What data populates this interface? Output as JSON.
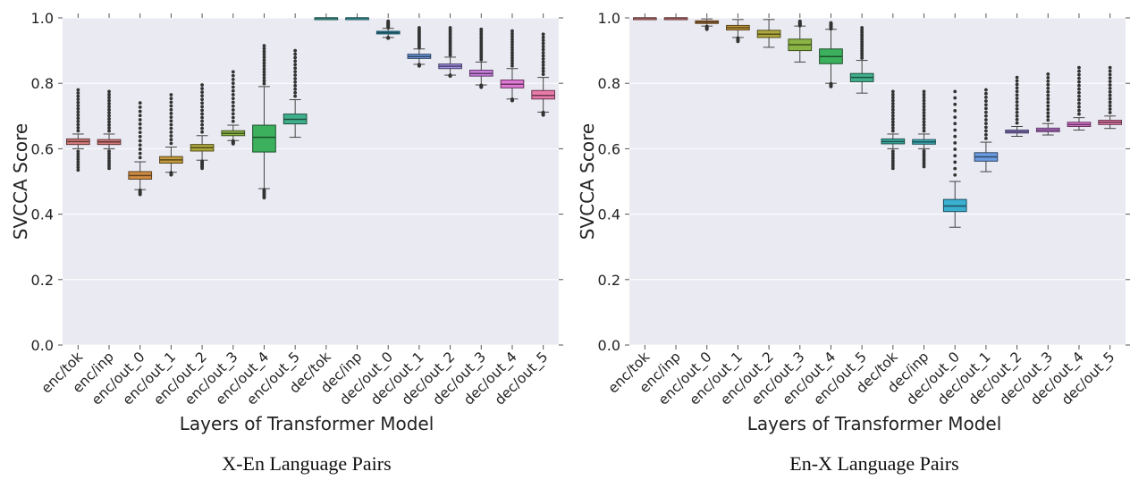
{
  "chart_data": [
    {
      "type": "box",
      "caption": "X-En Language Pairs",
      "xlabel": "Layers of Transformer Model",
      "ylabel": "SVCCA Score",
      "ylim": [
        0.0,
        1.0
      ],
      "yticks": [
        0.0,
        0.2,
        0.4,
        0.6,
        0.8,
        1.0
      ],
      "ytick_labels": [
        "0.0",
        "0.2",
        "0.4",
        "0.6",
        "0.8",
        "1.0"
      ],
      "grid": true,
      "categories": [
        "enc/tok",
        "enc/inp",
        "enc/out_0",
        "enc/out_1",
        "enc/out_2",
        "enc/out_3",
        "enc/out_4",
        "enc/out_5",
        "dec/tok",
        "dec/inp",
        "dec/out_0",
        "dec/out_1",
        "dec/out_2",
        "dec/out_3",
        "dec/out_4",
        "dec/out_5"
      ],
      "colors": [
        "#d77c7c",
        "#d6797a",
        "#d08c42",
        "#c49b3c",
        "#b0a83c",
        "#8ab545",
        "#3cb05c",
        "#40b08c",
        "#3fb0a5",
        "#3fb1b9",
        "#3aafd0",
        "#6b9be0",
        "#a08fe6",
        "#cc7fe0",
        "#e078d4",
        "#e87aaa"
      ],
      "boxes": [
        {
          "whisker_low": 0.6,
          "q1": 0.613,
          "median": 0.622,
          "q3": 0.63,
          "whisker_high": 0.645,
          "flier_low": 0.535,
          "flier_high": 0.78
        },
        {
          "whisker_low": 0.6,
          "q1": 0.613,
          "median": 0.621,
          "q3": 0.628,
          "whisker_high": 0.645,
          "flier_low": 0.54,
          "flier_high": 0.775
        },
        {
          "whisker_low": 0.475,
          "q1": 0.507,
          "median": 0.518,
          "q3": 0.53,
          "whisker_high": 0.56,
          "flier_low": 0.46,
          "flier_high": 0.74
        },
        {
          "whisker_low": 0.528,
          "q1": 0.556,
          "median": 0.566,
          "q3": 0.576,
          "whisker_high": 0.605,
          "flier_low": 0.52,
          "flier_high": 0.765
        },
        {
          "whisker_low": 0.565,
          "q1": 0.593,
          "median": 0.603,
          "q3": 0.613,
          "whisker_high": 0.64,
          "flier_low": 0.54,
          "flier_high": 0.795
        },
        {
          "whisker_low": 0.625,
          "q1": 0.64,
          "median": 0.647,
          "q3": 0.655,
          "whisker_high": 0.672,
          "flier_low": 0.615,
          "flier_high": 0.835
        },
        {
          "whisker_low": 0.478,
          "q1": 0.59,
          "median": 0.635,
          "q3": 0.672,
          "whisker_high": 0.79,
          "flier_low": 0.45,
          "flier_high": 0.915
        },
        {
          "whisker_low": 0.635,
          "q1": 0.676,
          "median": 0.69,
          "q3": 0.706,
          "whisker_high": 0.75,
          "flier_low": null,
          "flier_high": 0.9
        },
        {
          "whisker_low": 0.998,
          "q1": 0.999,
          "median": 1.0,
          "q3": 1.0,
          "whisker_high": 1.0,
          "flier_low": null,
          "flier_high": null
        },
        {
          "whisker_low": 0.998,
          "q1": 0.999,
          "median": 1.0,
          "q3": 1.0,
          "whisker_high": 1.0,
          "flier_low": null,
          "flier_high": null
        },
        {
          "whisker_low": 0.94,
          "q1": 0.951,
          "median": 0.955,
          "q3": 0.959,
          "whisker_high": 0.968,
          "flier_low": 0.938,
          "flier_high": 0.99
        },
        {
          "whisker_low": 0.858,
          "q1": 0.876,
          "median": 0.882,
          "q3": 0.889,
          "whisker_high": 0.905,
          "flier_low": 0.853,
          "flier_high": 0.97
        },
        {
          "whisker_low": 0.825,
          "q1": 0.845,
          "median": 0.852,
          "q3": 0.859,
          "whisker_high": 0.88,
          "flier_low": 0.822,
          "flier_high": 0.97
        },
        {
          "whisker_low": 0.795,
          "q1": 0.822,
          "median": 0.83,
          "q3": 0.84,
          "whisker_high": 0.865,
          "flier_low": 0.788,
          "flier_high": 0.965
        },
        {
          "whisker_low": 0.752,
          "q1": 0.786,
          "median": 0.797,
          "q3": 0.81,
          "whisker_high": 0.845,
          "flier_low": 0.747,
          "flier_high": 0.96
        },
        {
          "whisker_low": 0.712,
          "q1": 0.752,
          "median": 0.763,
          "q3": 0.778,
          "whisker_high": 0.818,
          "flier_low": 0.703,
          "flier_high": 0.95
        }
      ]
    },
    {
      "type": "box",
      "caption": "En-X Language Pairs",
      "xlabel": "Layers of Transformer Model",
      "ylabel": "SVCCA Score",
      "ylim": [
        0.0,
        1.0
      ],
      "yticks": [
        0.0,
        0.2,
        0.4,
        0.6,
        0.8,
        1.0
      ],
      "ytick_labels": [
        "0.0",
        "0.2",
        "0.4",
        "0.6",
        "0.8",
        "1.0"
      ],
      "grid": true,
      "categories": [
        "enc/tok",
        "enc/inp",
        "enc/out_0",
        "enc/out_1",
        "enc/out_2",
        "enc/out_3",
        "enc/out_4",
        "enc/out_5",
        "dec/tok",
        "dec/inp",
        "dec/out_0",
        "dec/out_1",
        "dec/out_2",
        "dec/out_3",
        "dec/out_4",
        "dec/out_5"
      ],
      "colors": [
        "#d77c7c",
        "#d6797a",
        "#d08c42",
        "#c49b3c",
        "#b0a83c",
        "#8ab545",
        "#3cb05c",
        "#40b08c",
        "#3fb0a5",
        "#3fb1b9",
        "#3aafd0",
        "#6b9be0",
        "#a08fe6",
        "#cc7fe0",
        "#e078d4",
        "#e87aaa"
      ],
      "boxes": [
        {
          "whisker_low": 0.998,
          "q1": 0.999,
          "median": 1.0,
          "q3": 1.0,
          "whisker_high": 1.0,
          "flier_low": null,
          "flier_high": null
        },
        {
          "whisker_low": 0.998,
          "q1": 0.999,
          "median": 1.0,
          "q3": 1.0,
          "whisker_high": 1.0,
          "flier_low": null,
          "flier_high": null
        },
        {
          "whisker_low": 0.975,
          "q1": 0.983,
          "median": 0.987,
          "q3": 0.991,
          "whisker_high": 0.997,
          "flier_low": 0.965,
          "flier_high": null
        },
        {
          "whisker_low": 0.94,
          "q1": 0.963,
          "median": 0.97,
          "q3": 0.977,
          "whisker_high": 0.995,
          "flier_low": 0.928,
          "flier_high": null
        },
        {
          "whisker_low": 0.91,
          "q1": 0.94,
          "median": 0.95,
          "q3": 0.962,
          "whisker_high": 0.995,
          "flier_low": null,
          "flier_high": null
        },
        {
          "whisker_low": 0.865,
          "q1": 0.9,
          "median": 0.918,
          "q3": 0.935,
          "whisker_high": 0.975,
          "flier_low": null,
          "flier_high": 0.99
        },
        {
          "whisker_low": 0.8,
          "q1": 0.86,
          "median": 0.882,
          "q3": 0.905,
          "whisker_high": 0.965,
          "flier_low": 0.79,
          "flier_high": 0.985
        },
        {
          "whisker_low": 0.77,
          "q1": 0.805,
          "median": 0.818,
          "q3": 0.83,
          "whisker_high": 0.87,
          "flier_low": null,
          "flier_high": 0.97
        },
        {
          "whisker_low": 0.6,
          "q1": 0.615,
          "median": 0.622,
          "q3": 0.63,
          "whisker_high": 0.645,
          "flier_low": 0.54,
          "flier_high": 0.775
        },
        {
          "whisker_low": 0.6,
          "q1": 0.614,
          "median": 0.621,
          "q3": 0.628,
          "whisker_high": 0.645,
          "flier_low": 0.545,
          "flier_high": 0.775
        },
        {
          "whisker_low": 0.36,
          "q1": 0.408,
          "median": 0.425,
          "q3": 0.445,
          "whisker_high": 0.5,
          "flier_low": null,
          "flier_high": 0.775
        },
        {
          "whisker_low": 0.53,
          "q1": 0.562,
          "median": 0.575,
          "q3": 0.588,
          "whisker_high": 0.62,
          "flier_low": null,
          "flier_high": 0.78
        },
        {
          "whisker_low": 0.638,
          "q1": 0.648,
          "median": 0.652,
          "q3": 0.657,
          "whisker_high": 0.668,
          "flier_low": null,
          "flier_high": 0.818
        },
        {
          "whisker_low": 0.642,
          "q1": 0.652,
          "median": 0.657,
          "q3": 0.663,
          "whisker_high": 0.677,
          "flier_low": null,
          "flier_high": 0.828
        },
        {
          "whisker_low": 0.657,
          "q1": 0.668,
          "median": 0.674,
          "q3": 0.681,
          "whisker_high": 0.695,
          "flier_low": null,
          "flier_high": 0.848
        },
        {
          "whisker_low": 0.662,
          "q1": 0.674,
          "median": 0.681,
          "q3": 0.687,
          "whisker_high": 0.7,
          "flier_low": null,
          "flier_high": 0.848
        }
      ]
    }
  ]
}
